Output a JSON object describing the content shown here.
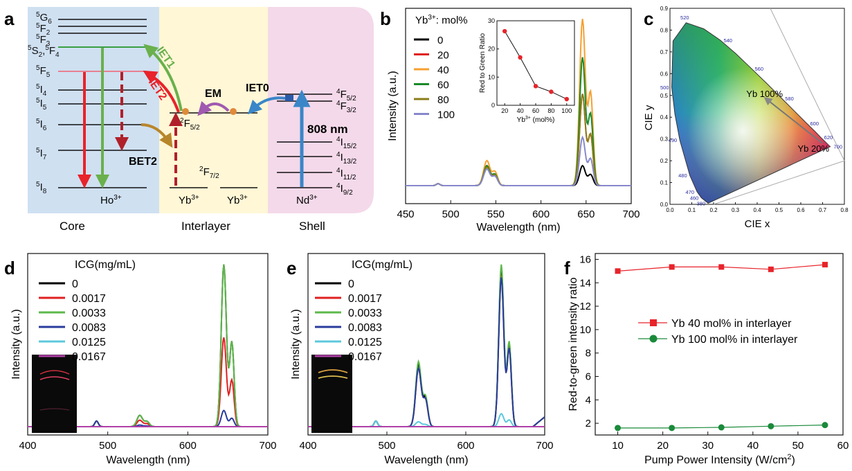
{
  "panel_labels": {
    "a": "a",
    "b": "b",
    "c": "c",
    "d": "d",
    "e": "e",
    "f": "f"
  },
  "panel_a": {
    "regions": [
      "Core",
      "Interlayer",
      "Shell"
    ],
    "colors": {
      "core": "#cfe0f1",
      "interlayer": "#fff7d6",
      "shell": "#f4d9ea"
    },
    "ho_levels": [
      {
        "label": "G",
        "sup": "5",
        "sub": "6"
      },
      {
        "label": "F",
        "sup": "5",
        "sub": "2"
      },
      {
        "label": "F",
        "sup": "5",
        "sub": "3"
      },
      {
        "label": "S",
        "sup": "5",
        "sub": "2",
        "extra": ", F",
        "extra_sup": "5",
        "extra_sub": "4"
      },
      {
        "label": "F",
        "sup": "5",
        "sub": "5"
      },
      {
        "label": "I",
        "sup": "5",
        "sub": "4"
      },
      {
        "label": "I",
        "sup": "5",
        "sub": "5"
      },
      {
        "label": "I",
        "sup": "5",
        "sub": "6"
      },
      {
        "label": "I",
        "sup": "5",
        "sub": "7"
      },
      {
        "label": "I",
        "sup": "5",
        "sub": "8"
      }
    ],
    "ion_labels": {
      "ho": "Ho",
      "ho_sup": "3+",
      "yb": "Yb",
      "yb_sup": "3+",
      "nd": "Nd",
      "nd_sup": "3+"
    },
    "yb_levels": {
      "upper": "F",
      "upper_sup": "2",
      "upper_sub": "5/2",
      "lower": "F",
      "lower_sup": "2",
      "lower_sub": "7/2"
    },
    "nd_levels": [
      {
        "label": "F",
        "sup": "4",
        "sub": "5/2"
      },
      {
        "label": "F",
        "sup": "4",
        "sub": "3/2"
      },
      {
        "label": "I",
        "sup": "4",
        "sub": "15/2"
      },
      {
        "label": "I",
        "sup": "4",
        "sub": "13/2"
      },
      {
        "label": "I",
        "sup": "4",
        "sub": "11/2"
      },
      {
        "label": "I",
        "sup": "4",
        "sub": "9/2"
      }
    ],
    "transfers": {
      "iet0": "IET0",
      "iet1": "IET1",
      "iet2": "IET2",
      "em": "EM",
      "bet2": "BET2",
      "pump": "808 nm"
    }
  },
  "chart_data": [
    {
      "panel": "b",
      "type": "line",
      "xlabel": "Wavelength (nm)",
      "ylabel": "Intensity (a.u.)",
      "xlim": [
        450,
        700
      ],
      "xticks": [
        450,
        500,
        550,
        600,
        650,
        700
      ],
      "legend_title": "Yb",
      "legend_title_sup": "3+",
      "legend_title_suffix": ": mol%",
      "series": [
        {
          "name": "0",
          "color": "#000000",
          "green": 0.12,
          "red": 0.12
        },
        {
          "name": "20",
          "color": "#e02020",
          "green": 0.12,
          "red": 0.55
        },
        {
          "name": "40",
          "color": "#f5a030",
          "green": 0.15,
          "red": 1.0
        },
        {
          "name": "60",
          "color": "#1a8a2a",
          "green": 0.12,
          "red": 0.77
        },
        {
          "name": "80",
          "color": "#8b7d1a",
          "green": 0.11,
          "red": 0.55
        },
        {
          "name": "100",
          "color": "#8888cc",
          "green": 0.1,
          "red": 0.29
        }
      ],
      "inset": {
        "type": "line",
        "xlabel": "Yb",
        "xlabel_sup": "3+",
        "xlabel_suffix": " (mol%)",
        "ylabel": "Red to Green Ratio",
        "xlim": [
          10,
          110
        ],
        "ylim": [
          0,
          30
        ],
        "xticks": [
          20,
          40,
          60,
          80,
          100
        ],
        "yticks": [
          0,
          10,
          20,
          30
        ],
        "x": [
          20,
          40,
          60,
          80,
          100
        ],
        "y": [
          26.3,
          17.0,
          6.8,
          4.8,
          2.2
        ]
      }
    },
    {
      "panel": "c",
      "type": "scatter",
      "xlabel": "CIE x",
      "ylabel": "CIE y",
      "xlim": [
        0,
        0.8
      ],
      "ylim": [
        0,
        0.9
      ],
      "xticks": [
        "0.0",
        "0.1",
        "0.2",
        "0.3",
        "0.4",
        "0.5",
        "0.6",
        "0.7",
        "0.8"
      ],
      "yticks": [
        "0.0",
        "0.1",
        "0.2",
        "0.3",
        "0.4",
        "0.5",
        "0.6",
        "0.7",
        "0.8",
        "0.9"
      ],
      "wavelength_labels": [
        {
          "nm": "380",
          "x": 0.175,
          "y": 0.005
        },
        {
          "nm": "460",
          "x": 0.144,
          "y": 0.03
        },
        {
          "nm": "470",
          "x": 0.124,
          "y": 0.058
        },
        {
          "nm": "480",
          "x": 0.091,
          "y": 0.133
        },
        {
          "nm": "490",
          "x": 0.045,
          "y": 0.295
        },
        {
          "nm": "500",
          "x": 0.008,
          "y": 0.538
        },
        {
          "nm": "520",
          "x": 0.074,
          "y": 0.834
        },
        {
          "nm": "540",
          "x": 0.23,
          "y": 0.754
        },
        {
          "nm": "560",
          "x": 0.373,
          "y": 0.624
        },
        {
          "nm": "580",
          "x": 0.512,
          "y": 0.487
        },
        {
          "nm": "600",
          "x": 0.627,
          "y": 0.372
        },
        {
          "nm": "620",
          "x": 0.691,
          "y": 0.308
        },
        {
          "nm": "700",
          "x": 0.735,
          "y": 0.265
        }
      ],
      "points": [
        {
          "label": "Yb 100%",
          "x": 0.42,
          "y": 0.5
        },
        {
          "label": "Yb 20%",
          "x": 0.7,
          "y": 0.28
        }
      ]
    },
    {
      "panel": "d",
      "type": "line",
      "xlabel": "Wavelength (nm)",
      "ylabel": "Intensity (a.u.)",
      "xlim": [
        400,
        700
      ],
      "xticks": [
        400,
        500,
        600,
        700
      ],
      "legend_title": "ICG(mg/mL)",
      "series": [
        {
          "name": "0",
          "color": "#000000",
          "red": 1.0,
          "green": 0.07
        },
        {
          "name": "0.0017",
          "color": "#e02020",
          "red": 0.55,
          "green": 0.04
        },
        {
          "name": "0.0033",
          "color": "#5cb84a",
          "red": 1.0,
          "green": 0.07
        },
        {
          "name": "0.0083",
          "color": "#283c9c",
          "red": 0.1,
          "green": 0.01
        },
        {
          "name": "0.0125",
          "color": "#5cc8dc",
          "red": 0.0,
          "green": 0.0
        },
        {
          "name": "0.0167",
          "color": "#b040a8",
          "red": 0.0,
          "green": 0.0
        }
      ]
    },
    {
      "panel": "e",
      "type": "line",
      "xlabel": "Wavelength (nm)",
      "ylabel": "Intensity (a.u.)",
      "xlim": [
        400,
        700
      ],
      "xticks": [
        400,
        500,
        600,
        700
      ],
      "legend_title": "ICG(mg/mL)",
      "series": [
        {
          "name": "0",
          "color": "#000000",
          "red": 0.97,
          "green": 0.38
        },
        {
          "name": "0.0017",
          "color": "#e02020",
          "red": 0.93,
          "green": 0.36
        },
        {
          "name": "0.0033",
          "color": "#5cb84a",
          "red": 1.0,
          "green": 0.4
        },
        {
          "name": "0.0083",
          "color": "#283c9c",
          "red": 0.92,
          "green": 0.36
        },
        {
          "name": "0.0125",
          "color": "#5cc8dc",
          "red": 0.08,
          "green": 0.03
        },
        {
          "name": "0.0167",
          "color": "#b040a8",
          "red": 0.0,
          "green": 0.0
        }
      ]
    },
    {
      "panel": "f",
      "type": "line",
      "xlabel": "Pump Power Intensity (W/cm",
      "xlabel_sup": "2",
      "xlabel_suffix": ")",
      "ylabel": "Red-to-green intensity ratio",
      "xlim": [
        5,
        60
      ],
      "ylim": [
        1,
        16.5
      ],
      "xticks": [
        10,
        20,
        30,
        40,
        50,
        60
      ],
      "yticks": [
        2,
        4,
        6,
        8,
        10,
        12,
        14,
        16
      ],
      "series": [
        {
          "name": "Yb 40 mol% in interlayer",
          "color": "#e8232a",
          "marker": "square",
          "x": [
            10,
            22,
            33,
            44,
            56
          ],
          "y": [
            15.0,
            15.35,
            15.35,
            15.15,
            15.55
          ]
        },
        {
          "name": "Yb 100 mol% in interlayer",
          "color": "#1a8a3a",
          "marker": "circle",
          "x": [
            10,
            22,
            33,
            44,
            56
          ],
          "y": [
            1.6,
            1.6,
            1.65,
            1.75,
            1.85
          ]
        }
      ]
    }
  ]
}
